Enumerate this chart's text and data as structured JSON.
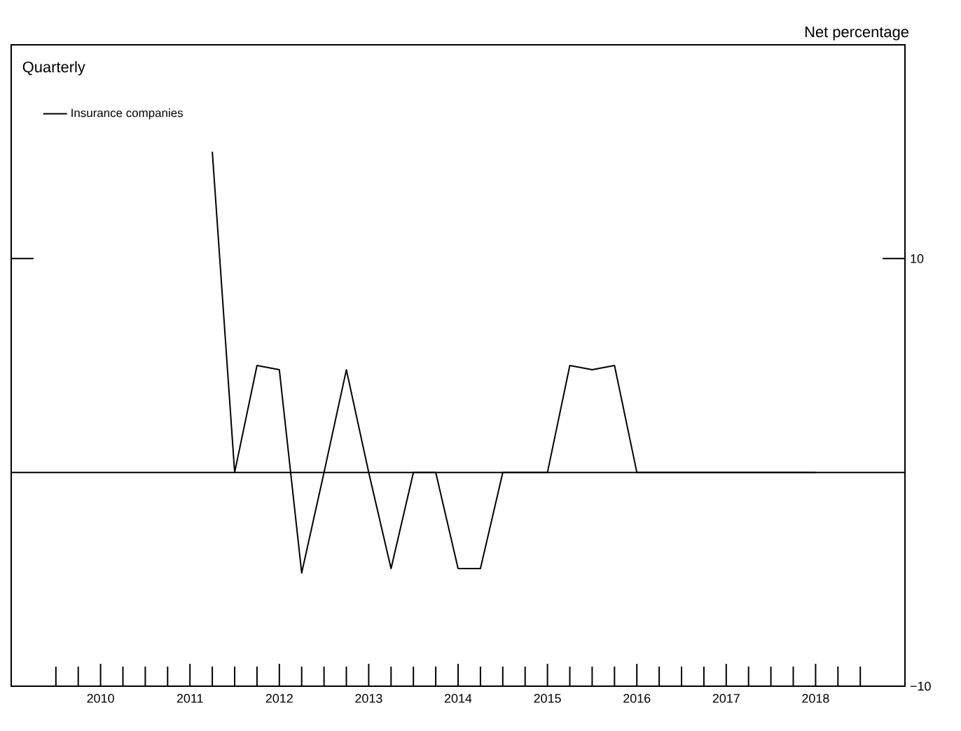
{
  "chart_data": {
    "type": "line",
    "ylabel": "Net percentage",
    "legend_title": "Quarterly",
    "x": [
      2011.75,
      2012.0,
      2012.25,
      2012.5,
      2012.75,
      2013.0,
      2013.25,
      2013.5,
      2013.75,
      2014.0,
      2014.25,
      2014.5,
      2014.75,
      2015.0,
      2015.25,
      2015.5,
      2015.75,
      2016.0,
      2016.25,
      2016.5,
      2016.75,
      2017.0,
      2017.25,
      2017.5,
      2017.75,
      2018.0,
      2018.25,
      2018.5
    ],
    "series": [
      {
        "name": "Insurance companies",
        "color": "#000000",
        "values": [
          15,
          0,
          5,
          4.8,
          -4.7,
          0,
          4.8,
          0,
          -4.5,
          0,
          0,
          -4.5,
          -4.5,
          0,
          0,
          0,
          5,
          4.8,
          5,
          0,
          0,
          0,
          0,
          0,
          0,
          0,
          0,
          0
        ]
      }
    ],
    "xlim": [
      2009.5,
      2019.5
    ],
    "ylim": [
      -10,
      20
    ],
    "xticks": [
      {
        "value": 2010.5,
        "label": "2010"
      },
      {
        "value": 2011.5,
        "label": "2011"
      },
      {
        "value": 2012.5,
        "label": "2012"
      },
      {
        "value": 2013.5,
        "label": "2013"
      },
      {
        "value": 2014.5,
        "label": "2014"
      },
      {
        "value": 2015.5,
        "label": "2015"
      },
      {
        "value": 2016.5,
        "label": "2016"
      },
      {
        "value": 2017.5,
        "label": "2017"
      },
      {
        "value": 2018.5,
        "label": "2018"
      }
    ],
    "yticks": [
      {
        "value": -10,
        "label": "−10"
      },
      {
        "value": 10,
        "label": "10"
      },
      {
        "value": 20,
        "label": null
      }
    ],
    "ref_lines": [
      {
        "axis": "y",
        "value": 0
      }
    ],
    "legend": "top left",
    "grid": false,
    "marker": "none",
    "line_style": "solid"
  }
}
